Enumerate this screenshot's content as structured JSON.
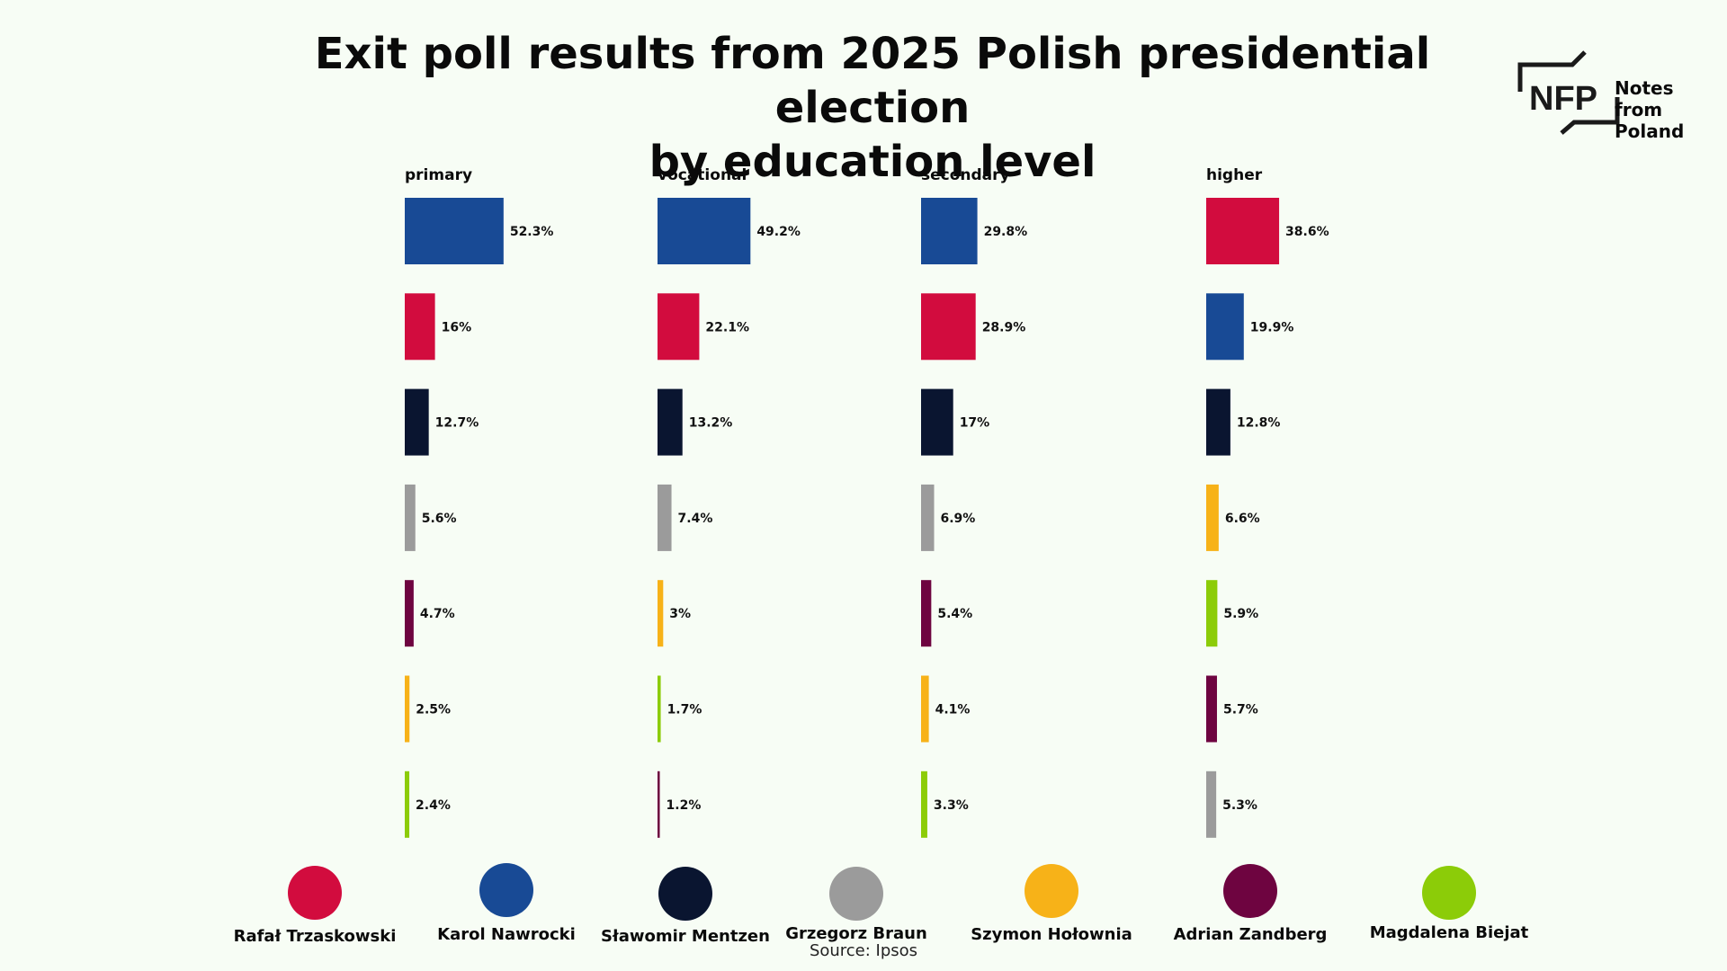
{
  "title_line1": "Exit poll results from 2025 Polish presidential election",
  "title_line2": "by education level",
  "logo": {
    "mark": "NFP",
    "text_line1": "Notes from",
    "text_line2": "Poland"
  },
  "source": "Source: Ipsos",
  "colors": {
    "Rafał Trzaskowski": "#d20c3e",
    "Karol Nawrocki": "#184a95",
    "Sławomir Mentzen": "#0a1530",
    "Grzegorz Braun": "#9b9b9b",
    "Szymon Hołownia": "#f7b218",
    "Adrian Zandberg": "#6e0440",
    "Magdalena Biejat": "#8ccc08"
  },
  "chart_data": {
    "type": "bar",
    "orientation": "horizontal",
    "panels": [
      {
        "label": "primary",
        "bars": [
          {
            "candidate": "Karol Nawrocki",
            "value": 52.3,
            "label": "52.3%"
          },
          {
            "candidate": "Rafał Trzaskowski",
            "value": 16,
            "label": "16%"
          },
          {
            "candidate": "Sławomir Mentzen",
            "value": 12.7,
            "label": "12.7%"
          },
          {
            "candidate": "Grzegorz Braun",
            "value": 5.6,
            "label": "5.6%"
          },
          {
            "candidate": "Adrian Zandberg",
            "value": 4.7,
            "label": "4.7%"
          },
          {
            "candidate": "Szymon Hołownia",
            "value": 2.5,
            "label": "2.5%"
          },
          {
            "candidate": "Magdalena Biejat",
            "value": 2.4,
            "label": "2.4%"
          }
        ]
      },
      {
        "label": "vocational",
        "bars": [
          {
            "candidate": "Karol Nawrocki",
            "value": 49.2,
            "label": "49.2%"
          },
          {
            "candidate": "Rafał Trzaskowski",
            "value": 22.1,
            "label": "22.1%"
          },
          {
            "candidate": "Sławomir Mentzen",
            "value": 13.2,
            "label": "13.2%"
          },
          {
            "candidate": "Grzegorz Braun",
            "value": 7.4,
            "label": "7.4%"
          },
          {
            "candidate": "Szymon Hołownia",
            "value": 3,
            "label": "3%"
          },
          {
            "candidate": "Magdalena Biejat",
            "value": 1.7,
            "label": "1.7%"
          },
          {
            "candidate": "Adrian Zandberg",
            "value": 1.2,
            "label": "1.2%"
          }
        ]
      },
      {
        "label": "secondary",
        "bars": [
          {
            "candidate": "Karol Nawrocki",
            "value": 29.8,
            "label": "29.8%"
          },
          {
            "candidate": "Rafał Trzaskowski",
            "value": 28.9,
            "label": "28.9%"
          },
          {
            "candidate": "Sławomir Mentzen",
            "value": 17,
            "label": "17%"
          },
          {
            "candidate": "Grzegorz Braun",
            "value": 6.9,
            "label": "6.9%"
          },
          {
            "candidate": "Adrian Zandberg",
            "value": 5.4,
            "label": "5.4%"
          },
          {
            "candidate": "Szymon Hołownia",
            "value": 4.1,
            "label": "4.1%"
          },
          {
            "candidate": "Magdalena Biejat",
            "value": 3.3,
            "label": "3.3%"
          }
        ]
      },
      {
        "label": "higher",
        "bars": [
          {
            "candidate": "Rafał Trzaskowski",
            "value": 38.6,
            "label": "38.6%"
          },
          {
            "candidate": "Karol Nawrocki",
            "value": 19.9,
            "label": "19.9%"
          },
          {
            "candidate": "Sławomir Mentzen",
            "value": 12.8,
            "label": "12.8%"
          },
          {
            "candidate": "Szymon Hołownia",
            "value": 6.6,
            "label": "6.6%"
          },
          {
            "candidate": "Magdalena Biejat",
            "value": 5.9,
            "label": "5.9%"
          },
          {
            "candidate": "Adrian Zandberg",
            "value": 5.7,
            "label": "5.7%"
          },
          {
            "candidate": "Grzegorz Braun",
            "value": 5.3,
            "label": "5.3%"
          }
        ]
      }
    ],
    "legend": [
      "Rafał Trzaskowski",
      "Karol Nawrocki",
      "Sławomir Mentzen",
      "Grzegorz Braun",
      "Szymon Hołownia",
      "Adrian Zandberg",
      "Magdalena Biejat"
    ]
  }
}
